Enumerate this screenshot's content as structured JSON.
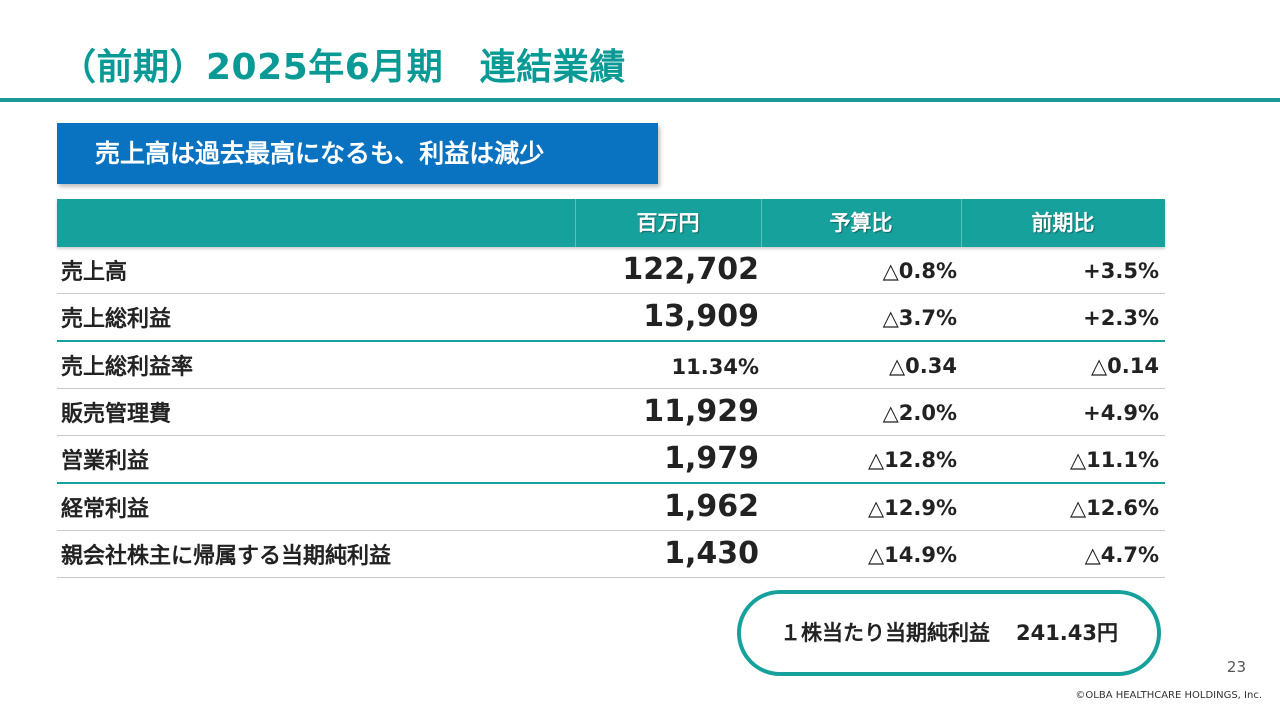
{
  "slide": {
    "title": "（前期）2025年6月期　連結業績",
    "banner": "売上高は過去最高になるも、利益は減少",
    "page_number": "23",
    "copyright": "©OLBA HEALTHCARE HOLDINGS, Inc."
  },
  "colors": {
    "accent_teal": "#17a19c",
    "banner_blue": "#0a73c1"
  },
  "table": {
    "headers": {
      "value": "百万円",
      "budget_ratio": "予算比",
      "prev_ratio": "前期比"
    },
    "rows": [
      {
        "label": "売上高",
        "value": "122,702",
        "budget": "△0.8%",
        "prev": "+3.5%"
      },
      {
        "label": "売上総利益",
        "value": "13,909",
        "budget": "△3.7%",
        "prev": "+2.3%"
      },
      {
        "label": "売上総利益率",
        "value": "11.34%",
        "budget": "△0.34",
        "prev": "△0.14"
      },
      {
        "label": "販売管理費",
        "value": "11,929",
        "budget": "△2.0%",
        "prev": "+4.9%"
      },
      {
        "label": "営業利益",
        "value": "1,979",
        "budget": "△12.8%",
        "prev": "△11.1%"
      },
      {
        "label": "経常利益",
        "value": "1,962",
        "budget": "△12.9%",
        "prev": "△12.6%"
      },
      {
        "label": "親会社株主に帰属する当期純利益",
        "value": "1,430",
        "budget": "△14.9%",
        "prev": "△4.7%"
      }
    ]
  },
  "eps": {
    "label": "１株当たり当期純利益",
    "value": "241.43円"
  }
}
